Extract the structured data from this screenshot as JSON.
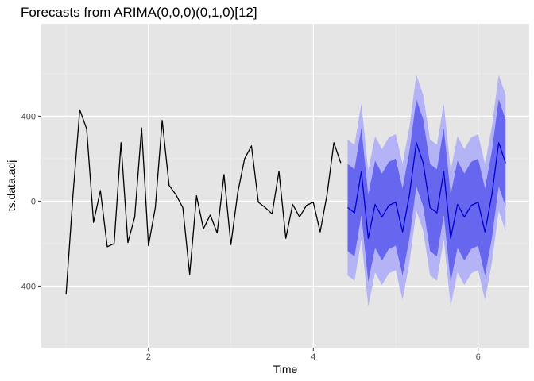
{
  "chart_data": {
    "type": "line",
    "title": "Forecasts from ARIMA(0,0,0)(0,1,0)[12]",
    "xlabel": "Time",
    "ylabel": "ts.data.adj",
    "xlim": [
      0.7,
      6.62
    ],
    "ylim": [
      -690,
      835
    ],
    "x_ticks": [
      {
        "value": 2,
        "label": "2"
      },
      {
        "value": 4,
        "label": "4"
      },
      {
        "value": 6,
        "label": "6"
      }
    ],
    "y_ticks": [
      {
        "value": -400,
        "label": "-400"
      },
      {
        "value": 0,
        "label": "0"
      },
      {
        "value": 400,
        "label": "400"
      }
    ],
    "x_minor": [
      1,
      3,
      5
    ],
    "y_minor": [
      -200,
      200,
      600
    ],
    "grid": true,
    "background": "#e5e5e5",
    "colors": {
      "observed": "#000000",
      "forecast": "#0000cc",
      "pi80": "#6666ee",
      "pi95": "#b3b3f5"
    },
    "observed": {
      "x_start": 1.0,
      "x_step": 0.08333,
      "values": [
        -440,
        25,
        430,
        340,
        -100,
        50,
        -215,
        -200,
        275,
        -195,
        -75,
        345,
        -210,
        -30,
        380,
        75,
        30,
        -30,
        -345,
        25,
        -130,
        -65,
        -150,
        125,
        -205,
        40,
        200,
        260,
        -5,
        -30,
        -60,
        140,
        -175,
        -15,
        -75,
        -20,
        -5,
        -145,
        30,
        275,
        180
      ]
    },
    "forecast": {
      "x_start": 4.41667,
      "x_step": 0.08333,
      "values": [
        -30,
        -55,
        140,
        -175,
        -15,
        -75,
        -20,
        -5,
        -145,
        30,
        275,
        180,
        -30,
        -55,
        140,
        -175,
        -15,
        -75,
        -20,
        -5,
        -145,
        30,
        275,
        180
      ],
      "pi80_half": 205,
      "pi95_half": 320
    }
  }
}
